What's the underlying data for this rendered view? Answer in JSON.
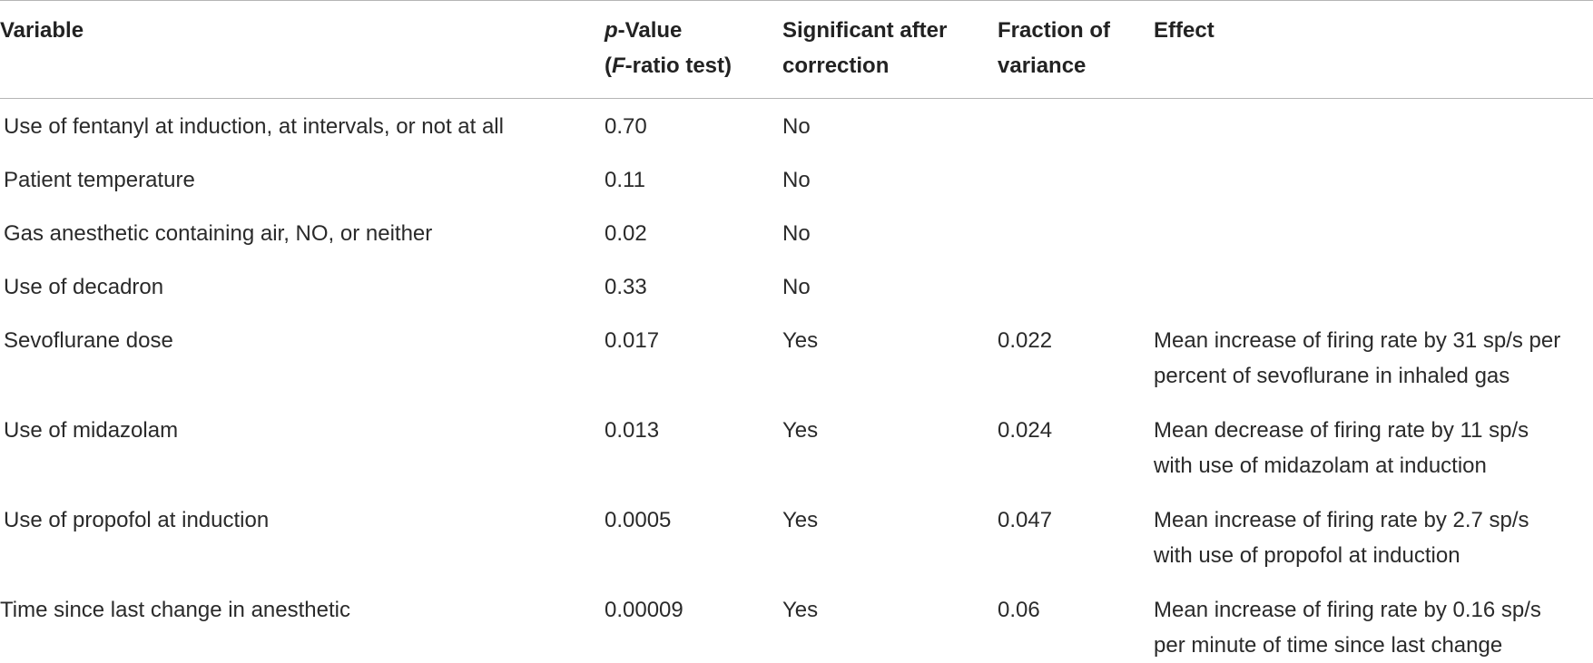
{
  "header": {
    "variable": "Variable",
    "pvalue_line1_italic": "p",
    "pvalue_line1_rest": "-Value",
    "pvalue_line2_open": "(",
    "pvalue_line2_italic": "F",
    "pvalue_line2_rest": "-ratio test)",
    "significant_line1": "Significant after",
    "significant_line2": "correction",
    "fraction_line1": "Fraction of",
    "fraction_line2": "variance",
    "effect": "Effect"
  },
  "rows": [
    {
      "variable": "Use of fentanyl at induction, at intervals, or not at all",
      "pvalue": "0.70",
      "significant": "No",
      "fraction": "",
      "effect_line1": "",
      "effect_line2": ""
    },
    {
      "variable": "Patient temperature",
      "pvalue": "0.11",
      "significant": "No",
      "fraction": "",
      "effect_line1": "",
      "effect_line2": ""
    },
    {
      "variable": "Gas anesthetic containing air, NO, or neither",
      "pvalue": "0.02",
      "significant": "No",
      "fraction": "",
      "effect_line1": "",
      "effect_line2": ""
    },
    {
      "variable": "Use of decadron",
      "pvalue": "0.33",
      "significant": "No",
      "fraction": "",
      "effect_line1": "",
      "effect_line2": ""
    },
    {
      "variable": "Sevoflurane dose",
      "pvalue": "0.017",
      "significant": "Yes",
      "fraction": "0.022",
      "effect_line1": "Mean increase of firing rate by 31 sp/s per",
      "effect_line2": "percent of sevoflurane in inhaled gas"
    },
    {
      "variable": "Use of midazolam",
      "pvalue": "0.013",
      "significant": "Yes",
      "fraction": "0.024",
      "effect_line1": "Mean decrease of firing rate by 11 sp/s",
      "effect_line2": "with use of midazolam at induction"
    },
    {
      "variable": "Use of propofol at induction",
      "pvalue": "0.0005",
      "significant": "Yes",
      "fraction": "0.047",
      "effect_line1": "Mean increase of firing rate by 2.7 sp/s",
      "effect_line2": "with use of propofol at induction"
    },
    {
      "variable": "Time since last change in anesthetic",
      "pvalue": "0.00009",
      "significant": "Yes",
      "fraction": "0.06",
      "effect_line1": "Mean increase of firing rate by 0.16 sp/s",
      "effect_line2": "per minute of time since last change"
    }
  ]
}
